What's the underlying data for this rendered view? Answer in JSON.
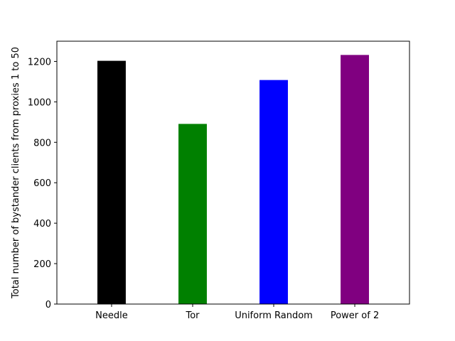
{
  "chart_data": {
    "type": "bar",
    "categories": [
      "Needle",
      "Tor",
      "Uniform Random",
      "Power of 2"
    ],
    "values": [
      1203,
      891,
      1108,
      1232
    ],
    "colors": [
      "#000000",
      "#008000",
      "#0000ff",
      "#800080"
    ],
    "title": "",
    "xlabel": "",
    "ylabel": "Total number of bystander clients from proxies 1 to 50",
    "ylim": [
      0,
      1300
    ],
    "yticks": [
      0,
      200,
      400,
      600,
      800,
      1000,
      1200
    ],
    "grid": false,
    "legend": "none"
  }
}
